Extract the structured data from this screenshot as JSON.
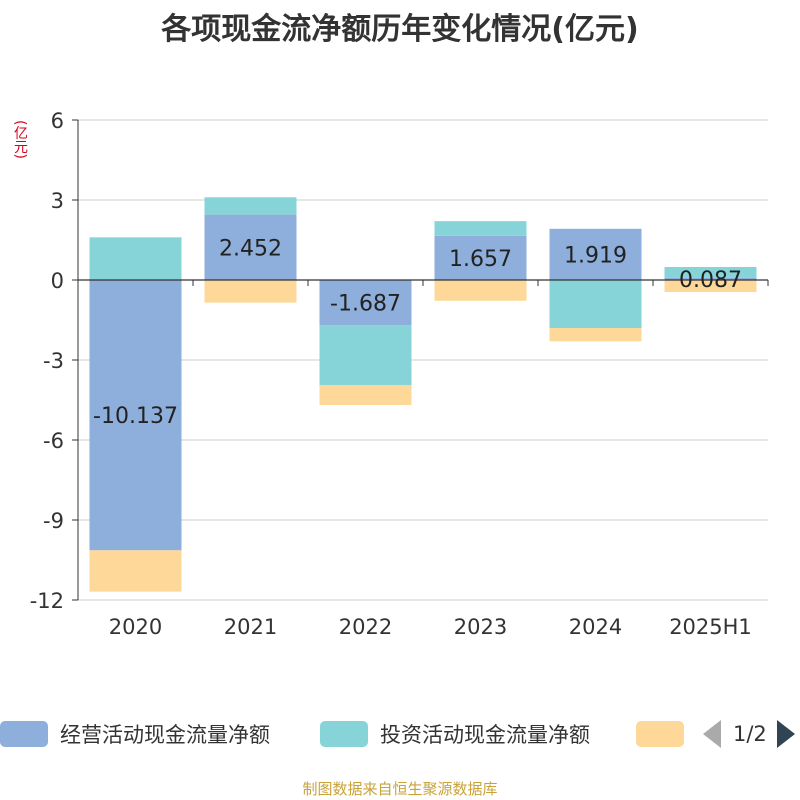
{
  "colors": {
    "operating": "#8eaedb",
    "investing": "#86d4d8",
    "financing": "#fdd898",
    "grid": "#cccccc",
    "axis": "#333333",
    "text": "#333333",
    "unit": "#d9001b",
    "source": "#c9a23a"
  },
  "unit_label": "(亿元)",
  "legend": {
    "pager_text": "1/2",
    "prev_icon": "triangle-left-icon",
    "next_icon": "triangle-right-icon"
  },
  "source_note": "制图数据来自恒生聚源数据库",
  "chart_data": {
    "type": "bar",
    "stacked": true,
    "title": "各项现金流净额历年变化情况(亿元)",
    "categories": [
      "2020",
      "2021",
      "2022",
      "2023",
      "2024",
      "2025H1"
    ],
    "ylim": [
      -12,
      6
    ],
    "yticks": [
      6,
      3,
      0,
      -3,
      -6,
      -9,
      -12
    ],
    "grid": true,
    "legend_position": "bottom",
    "series": [
      {
        "name": "经营活动现金流量净额",
        "color_key": "operating",
        "values": [
          -10.137,
          2.452,
          -1.687,
          1.657,
          1.919,
          0.087
        ],
        "labels": [
          "-10.137",
          "2.452",
          "-1.687",
          "1.657",
          "1.919",
          "0.087"
        ]
      },
      {
        "name": "投资活动现金流量净额",
        "color_key": "investing",
        "values": [
          1.6,
          0.65,
          -2.25,
          0.55,
          -1.8,
          0.4
        ]
      },
      {
        "name": "",
        "color_key": "financing",
        "values": [
          -1.55,
          -0.85,
          -0.75,
          -0.78,
          -0.5,
          -0.45
        ]
      }
    ]
  }
}
